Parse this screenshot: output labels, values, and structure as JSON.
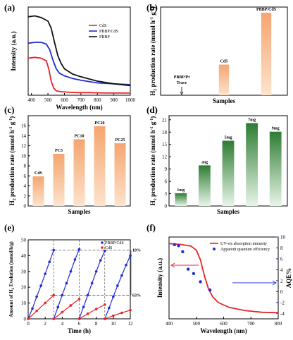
{
  "panels": [
    "(a)",
    "(b)",
    "(c)",
    "(d)",
    "(e)",
    "(f)"
  ],
  "chart_data": [
    {
      "id": "a",
      "type": "line",
      "xlabel": "Wavelength (nm)",
      "ylabel": "Intensity (a.u.)",
      "xlim": [
        380,
        1000
      ],
      "xticks": [
        400,
        500,
        600,
        700,
        800,
        900,
        1000
      ],
      "legend_position": "top-right",
      "series": [
        {
          "name": "CdS",
          "color": "#e8242a",
          "x": [
            380,
            420,
            460,
            490,
            505,
            520,
            535,
            550,
            580,
            620,
            680,
            750,
            850,
            1000
          ],
          "y": [
            0.42,
            0.43,
            0.42,
            0.39,
            0.3,
            0.16,
            0.08,
            0.05,
            0.04,
            0.035,
            0.03,
            0.03,
            0.025,
            0.025
          ]
        },
        {
          "name": "PBBP/CdS",
          "color": "#1f2bd8",
          "x": [
            380,
            420,
            460,
            490,
            510,
            530,
            550,
            570,
            600,
            650,
            700,
            800,
            900,
            1000
          ],
          "y": [
            0.59,
            0.6,
            0.6,
            0.58,
            0.52,
            0.4,
            0.3,
            0.25,
            0.22,
            0.19,
            0.17,
            0.14,
            0.13,
            0.12
          ]
        },
        {
          "name": "PBBP",
          "color": "#111111",
          "x": [
            380,
            420,
            460,
            500,
            520,
            540,
            560,
            580,
            600,
            650,
            700,
            800,
            900,
            1000
          ],
          "y": [
            0.89,
            0.9,
            0.88,
            0.84,
            0.76,
            0.6,
            0.45,
            0.36,
            0.3,
            0.24,
            0.21,
            0.16,
            0.13,
            0.11
          ]
        }
      ]
    },
    {
      "id": "b",
      "type": "bar",
      "xlabel": "Samples",
      "ylabel_parts": [
        "H",
        "2",
        " production rate  (mmol h",
        "-1",
        " g",
        "-1",
        ")"
      ],
      "categories": [
        "PBBP/Pt",
        "CdS",
        "PBBP/CdS"
      ],
      "values": [
        0.02,
        5.9,
        15.9
      ],
      "data_labels": [
        "PBBP/Pt",
        "CdS",
        "PBBP/CdS"
      ],
      "annotation": [
        "PBBP/Pt",
        "Trace"
      ],
      "ylim": [
        0,
        17
      ]
    },
    {
      "id": "c",
      "type": "bar",
      "xlabel": "Samples",
      "ylabel_parts": [
        "H",
        "2",
        " production rate  (mmol h",
        "-1",
        " g",
        "-1",
        ")"
      ],
      "categories": [
        "CdS",
        "PC5",
        "PC10",
        "PC20",
        "PC25"
      ],
      "values": [
        5.9,
        10.4,
        13.3,
        15.9,
        12.5
      ],
      "yticks": [
        0,
        2,
        4,
        6,
        8,
        10,
        12,
        14,
        16
      ],
      "ylim": [
        0,
        18
      ]
    },
    {
      "id": "d",
      "type": "bar",
      "xlabel": "Samples",
      "ylabel_parts": [
        "H",
        "2",
        " production rate  (mmol h",
        "-1",
        " g",
        "-1",
        ")"
      ],
      "categories": [
        "1mg",
        "3mg",
        "5mg",
        "7mg",
        "9mg"
      ],
      "data_labels": [
        "1mg",
        ".mg",
        "5mg",
        "7mg",
        "9mg"
      ],
      "values": [
        3.1,
        9.9,
        15.9,
        20.2,
        18.1
      ],
      "yticks": [
        0,
        3,
        6,
        9,
        12,
        15,
        18,
        21
      ],
      "ylim": [
        0,
        22
      ]
    },
    {
      "id": "e",
      "type": "scatter",
      "xlabel": "Time (h)",
      "ylabel_parts": [
        "Amount of H",
        "2",
        " Evolution (mmol/h/g)"
      ],
      "xlim": [
        0,
        12
      ],
      "ylim": [
        0,
        50
      ],
      "xticks": [
        0,
        2,
        4,
        6,
        8,
        10,
        12
      ],
      "yticks": [
        0,
        10,
        20,
        30,
        40,
        50
      ],
      "legend_position": "top-right",
      "series": [
        {
          "name": "PBBP/CdS",
          "color": "#1f2bd8",
          "x": [
            0,
            0.5,
            1,
            1.5,
            2,
            2.5,
            3,
            3,
            3.5,
            4,
            4.5,
            5,
            5.5,
            6,
            6,
            6.5,
            7,
            7.5,
            8,
            8.5,
            9,
            9,
            9.5,
            10,
            10.5,
            11,
            11.5,
            12
          ],
          "y": [
            0,
            6.5,
            14,
            21,
            28.5,
            36,
            43.5,
            0,
            7.5,
            15,
            22.5,
            30,
            37.5,
            44,
            0,
            7.5,
            15,
            22.5,
            30,
            37,
            43,
            0,
            6.8,
            14,
            21,
            27.5,
            34,
            40
          ]
        },
        {
          "name": "CdS",
          "color": "#e8242a",
          "x": [
            0,
            1,
            2,
            3,
            3,
            4,
            5,
            6,
            6,
            7,
            8,
            9,
            9,
            10,
            11,
            12
          ],
          "y": [
            0,
            5,
            10,
            15,
            0,
            4.2,
            8.5,
            12.5,
            0,
            3.2,
            6.2,
            9,
            0,
            2,
            3.8,
            5.5
          ]
        }
      ],
      "annotations": [
        "10%",
        "63%"
      ]
    },
    {
      "id": "f",
      "type": "line",
      "xlabel": "Wavelength (nm)",
      "ylabel": "Intensity (a.u.)",
      "y2label": "AQE%",
      "xlim": [
        400,
        800
      ],
      "xticks": [
        400,
        500,
        600,
        700,
        800
      ],
      "y2lim": [
        -5,
        10
      ],
      "y2ticks": [
        -4,
        -2,
        0,
        2,
        4,
        6,
        8,
        10
      ],
      "legend_position": "top-right",
      "series": [
        {
          "name": "UV-vis absorption intensity",
          "color": "#e8242a",
          "axis": "left",
          "x": [
            400,
            440,
            480,
            500,
            515,
            530,
            545,
            560,
            580,
            620,
            680,
            740,
            800
          ],
          "y": [
            0.92,
            0.91,
            0.89,
            0.84,
            0.72,
            0.52,
            0.36,
            0.27,
            0.2,
            0.14,
            0.1,
            0.08,
            0.075
          ]
        },
        {
          "name": "Apparent quantum efficiency",
          "color": "#1f2bd8",
          "axis": "right",
          "x": [
            420,
            435,
            450,
            470,
            490,
            515,
            550
          ],
          "y": [
            8.6,
            8.4,
            7.3,
            4.1,
            3.3,
            1.8,
            0.3
          ]
        }
      ]
    }
  ]
}
